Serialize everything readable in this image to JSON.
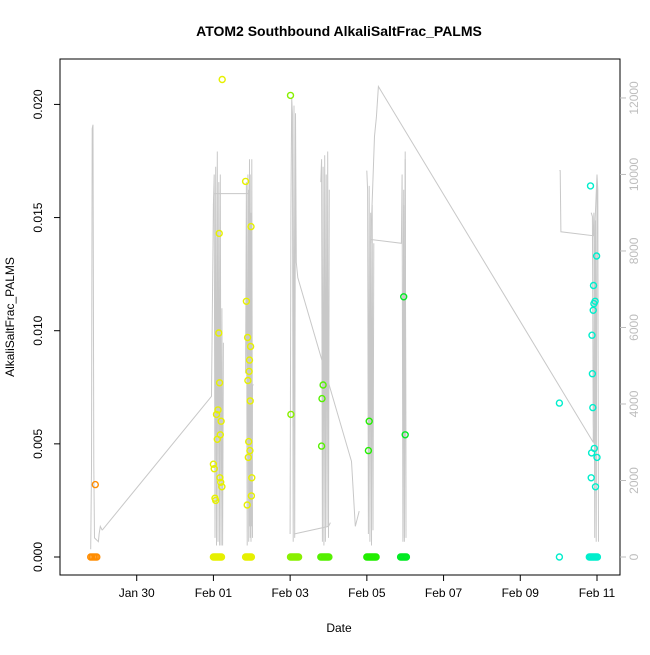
{
  "chart_data": {
    "type": "scatter",
    "title": "ATOM2 Southbound AlkaliSaltFrac_PALMS",
    "xlabel": "Date",
    "ylabel": "AlkaliSaltFrac_PALMS",
    "x_unit": "days since Jan 28 00:00",
    "xlim": [
      0.0,
      14.6
    ],
    "ylim": [
      0.0,
      0.0213
    ],
    "y2lim": [
      0,
      12600
    ],
    "x_ticks": [
      {
        "x": 2.0,
        "label": "Jan 30"
      },
      {
        "x": 4.0,
        "label": "Feb 01"
      },
      {
        "x": 6.0,
        "label": "Feb 03"
      },
      {
        "x": 8.0,
        "label": "Feb 05"
      },
      {
        "x": 10.0,
        "label": "Feb 07"
      },
      {
        "x": 12.0,
        "label": "Feb 09"
      },
      {
        "x": 14.0,
        "label": "Feb 11"
      }
    ],
    "y_ticks": [
      {
        "y": 0.0,
        "label": "0.000"
      },
      {
        "y": 0.005,
        "label": "0.005"
      },
      {
        "y": 0.01,
        "label": "0.010"
      },
      {
        "y": 0.015,
        "label": "0.015"
      },
      {
        "y": 0.02,
        "label": "0.020"
      }
    ],
    "y2_ticks": [
      {
        "y": 0,
        "label": "0"
      },
      {
        "y": 2000,
        "label": "2000"
      },
      {
        "y": 4000,
        "label": "4000"
      },
      {
        "y": 6000,
        "label": "6000"
      },
      {
        "y": 8000,
        "label": "8000"
      },
      {
        "y": 10000,
        "label": "10000"
      },
      {
        "y": 12000,
        "label": "12000"
      }
    ],
    "grid": false,
    "point_series": [
      {
        "color": "#ff8c00",
        "points": [
          [
            0.8,
            0.0
          ],
          [
            0.84,
            0.0
          ],
          [
            0.88,
            0.0
          ],
          [
            0.92,
            0.0
          ],
          [
            0.96,
            0.0
          ],
          [
            0.92,
            0.0032
          ]
        ]
      },
      {
        "color": "#e6f000",
        "points": [
          [
            4.0,
            0.0041
          ],
          [
            4.02,
            0.0039
          ],
          [
            4.04,
            0.0026
          ],
          [
            4.06,
            0.0025
          ],
          [
            4.08,
            0.0063
          ],
          [
            4.1,
            0.0052
          ],
          [
            4.12,
            0.0065
          ],
          [
            4.14,
            0.0099
          ],
          [
            4.15,
            0.0143
          ],
          [
            4.16,
            0.0077
          ],
          [
            4.17,
            0.0035
          ],
          [
            4.18,
            0.0054
          ],
          [
            4.19,
            0.0033
          ],
          [
            4.2,
            0.006
          ],
          [
            4.22,
            0.0031
          ],
          [
            4.23,
            0.0211
          ],
          [
            4.0,
            0.0
          ],
          [
            4.03,
            0.0
          ],
          [
            4.06,
            0.0
          ],
          [
            4.09,
            0.0
          ],
          [
            4.12,
            0.0
          ],
          [
            4.15,
            0.0
          ],
          [
            4.18,
            0.0
          ],
          [
            4.21,
            0.0
          ],
          [
            4.84,
            0.0166
          ],
          [
            4.86,
            0.0113
          ],
          [
            4.88,
            0.0023
          ],
          [
            4.89,
            0.0097
          ],
          [
            4.9,
            0.0078
          ],
          [
            4.91,
            0.0044
          ],
          [
            4.92,
            0.0051
          ],
          [
            4.93,
            0.0082
          ],
          [
            4.94,
            0.0087
          ],
          [
            4.95,
            0.0047
          ],
          [
            4.96,
            0.0069
          ],
          [
            4.97,
            0.0093
          ],
          [
            4.98,
            0.0146
          ],
          [
            4.99,
            0.0027
          ],
          [
            5.0,
            0.0035
          ],
          [
            4.84,
            0.0
          ],
          [
            4.87,
            0.0
          ],
          [
            4.9,
            0.0
          ],
          [
            4.93,
            0.0
          ],
          [
            4.96,
            0.0
          ],
          [
            4.99,
            0.0
          ]
        ]
      },
      {
        "color": "#88f000",
        "points": [
          [
            6.01,
            0.0204
          ],
          [
            6.02,
            0.0063
          ],
          [
            6.01,
            0.0
          ],
          [
            6.04,
            0.0
          ],
          [
            6.07,
            0.0
          ],
          [
            6.1,
            0.0
          ],
          [
            6.13,
            0.0
          ],
          [
            6.16,
            0.0
          ],
          [
            6.19,
            0.0
          ],
          [
            6.22,
            0.0
          ]
        ]
      },
      {
        "color": "#55f000",
        "points": [
          [
            6.8,
            0.0
          ],
          [
            6.83,
            0.0
          ],
          [
            6.86,
            0.0
          ],
          [
            6.89,
            0.0
          ],
          [
            6.92,
            0.0
          ],
          [
            6.95,
            0.0
          ],
          [
            6.98,
            0.0
          ],
          [
            7.01,
            0.0
          ],
          [
            6.82,
            0.0049
          ],
          [
            6.83,
            0.007
          ],
          [
            6.86,
            0.0076
          ]
        ]
      },
      {
        "color": "#22ee00",
        "points": [
          [
            8.0,
            0.0
          ],
          [
            8.03,
            0.0
          ],
          [
            8.06,
            0.0
          ],
          [
            8.09,
            0.0
          ],
          [
            8.12,
            0.0
          ],
          [
            8.15,
            0.0
          ],
          [
            8.18,
            0.0
          ],
          [
            8.21,
            0.0
          ],
          [
            8.24,
            0.0
          ],
          [
            8.04,
            0.0047
          ],
          [
            8.06,
            0.006
          ]
        ]
      },
      {
        "color": "#00ea22",
        "points": [
          [
            8.88,
            0.0
          ],
          [
            8.91,
            0.0
          ],
          [
            8.94,
            0.0
          ],
          [
            8.97,
            0.0
          ],
          [
            9.0,
            0.0
          ],
          [
            9.03,
            0.0
          ],
          [
            8.96,
            0.0115
          ],
          [
            9.0,
            0.0054
          ]
        ]
      },
      {
        "color": "#00eecc",
        "points": [
          [
            13.02,
            0.0068
          ],
          [
            13.02,
            0.0
          ],
          [
            13.8,
            0.0
          ],
          [
            13.83,
            0.0
          ],
          [
            13.86,
            0.0
          ],
          [
            13.89,
            0.0
          ],
          [
            13.92,
            0.0
          ],
          [
            13.95,
            0.0
          ],
          [
            13.98,
            0.0
          ],
          [
            14.01,
            0.0
          ],
          [
            13.83,
            0.0164
          ],
          [
            13.85,
            0.0035
          ],
          [
            13.86,
            0.0046
          ],
          [
            13.87,
            0.0098
          ],
          [
            13.88,
            0.0081
          ],
          [
            13.89,
            0.0066
          ],
          [
            13.9,
            0.0109
          ],
          [
            13.91,
            0.012
          ],
          [
            13.92,
            0.0112
          ],
          [
            13.93,
            0.0048
          ],
          [
            13.95,
            0.0113
          ],
          [
            13.96,
            0.0031
          ],
          [
            13.99,
            0.0133
          ],
          [
            14.0,
            0.0044
          ]
        ]
      }
    ],
    "altitude_trace": {
      "color": "#c8c8c8",
      "y_axis": "right",
      "segments": [
        [
          [
            0.8,
            200
          ],
          [
            0.82,
            2300
          ],
          [
            0.84,
            11200
          ],
          [
            0.86,
            11300
          ],
          [
            0.88,
            2400
          ],
          [
            0.9,
            500
          ],
          [
            1.0,
            400
          ],
          [
            1.02,
            600
          ],
          [
            1.05,
            800
          ],
          [
            1.1,
            700
          ]
        ],
        [
          [
            1.1,
            700
          ],
          [
            3.95,
            4200
          ],
          [
            4.0,
            9200
          ],
          [
            4.02,
            10000
          ],
          [
            4.04,
            500
          ],
          [
            4.06,
            10200
          ],
          [
            4.08,
            300
          ],
          [
            4.1,
            10600
          ],
          [
            4.12,
            400
          ],
          [
            4.14,
            9800
          ],
          [
            4.16,
            300
          ],
          [
            4.18,
            10000
          ],
          [
            4.2,
            300
          ],
          [
            4.22,
            6500
          ],
          [
            4.24,
            300
          ],
          [
            4.26,
            5600
          ]
        ],
        [
          [
            4.0,
            9200
          ],
          [
            4.02,
            9500
          ],
          [
            4.05,
            9500
          ],
          [
            4.9,
            9500
          ],
          [
            4.92,
            9600
          ],
          [
            4.94,
            800
          ],
          [
            4.96,
            10000
          ],
          [
            4.98,
            400
          ],
          [
            5.0,
            10400
          ],
          [
            5.02,
            500
          ]
        ],
        [
          [
            4.84,
            4800
          ],
          [
            4.86,
            9800
          ],
          [
            4.88,
            300
          ],
          [
            4.9,
            10000
          ],
          [
            4.92,
            400
          ],
          [
            4.94,
            10400
          ],
          [
            4.96,
            500
          ],
          [
            4.98,
            9000
          ],
          [
            5.0,
            800
          ],
          [
            5.02,
            4500
          ],
          [
            5.05,
            4500
          ]
        ],
        [
          [
            6.0,
            600
          ],
          [
            6.02,
            9000
          ],
          [
            6.04,
            12000
          ],
          [
            6.06,
            11600
          ],
          [
            6.08,
            400
          ],
          [
            6.1,
            11800
          ],
          [
            6.12,
            500
          ],
          [
            6.14,
            11600
          ],
          [
            6.16,
            7700
          ],
          [
            6.2,
            7300
          ],
          [
            7.6,
            2500
          ],
          [
            7.7,
            800
          ],
          [
            7.8,
            1200
          ]
        ],
        [
          [
            6.1,
            600
          ],
          [
            7.0,
            800
          ],
          [
            7.05,
            900
          ]
        ],
        [
          [
            6.8,
            9800
          ],
          [
            6.82,
            10400
          ],
          [
            6.84,
            400
          ],
          [
            6.86,
            10200
          ],
          [
            6.88,
            300
          ],
          [
            6.9,
            10500
          ],
          [
            6.92,
            400
          ],
          [
            6.94,
            10000
          ],
          [
            6.96,
            800
          ],
          [
            6.98,
            10600
          ],
          [
            7.0,
            500
          ],
          [
            7.02,
            9600
          ]
        ],
        [
          [
            8.0,
            10100
          ],
          [
            8.02,
            9600
          ],
          [
            8.04,
            600
          ],
          [
            8.06,
            9700
          ],
          [
            8.08,
            400
          ],
          [
            8.1,
            9000
          ],
          [
            8.12,
            300
          ],
          [
            8.14,
            9200
          ],
          [
            8.16,
            700
          ],
          [
            8.18,
            8200
          ]
        ],
        [
          [
            8.1,
            8200
          ],
          [
            8.2,
            11000
          ],
          [
            8.25,
            11500
          ],
          [
            8.3,
            12300
          ],
          [
            13.9,
            3000
          ],
          [
            13.95,
            8800
          ],
          [
            14.0,
            10000
          ]
        ],
        [
          [
            8.1,
            8300
          ],
          [
            8.9,
            8200
          ],
          [
            8.92,
            10000
          ],
          [
            8.94,
            400
          ],
          [
            8.96,
            9600
          ],
          [
            8.98,
            500
          ],
          [
            9.0,
            10600
          ],
          [
            9.02,
            600
          ]
        ],
        [
          [
            8.95,
            6300
          ],
          [
            8.96,
            9200
          ],
          [
            8.98,
            400
          ],
          [
            9.0,
            10400
          ],
          [
            9.02,
            500
          ]
        ],
        [
          [
            13.02,
            10100
          ],
          [
            13.04,
            10100
          ],
          [
            13.06,
            8500
          ],
          [
            13.9,
            8400
          ],
          [
            13.92,
            9000
          ],
          [
            13.94,
            500
          ],
          [
            13.96,
            8800
          ],
          [
            13.98,
            400
          ],
          [
            14.0,
            10000
          ],
          [
            14.02,
            9600
          ],
          [
            14.04,
            400
          ]
        ],
        [
          [
            13.85,
            9000
          ],
          [
            13.88,
            8900
          ],
          [
            13.9,
            3500
          ],
          [
            13.92,
            3000
          ]
        ]
      ]
    }
  }
}
